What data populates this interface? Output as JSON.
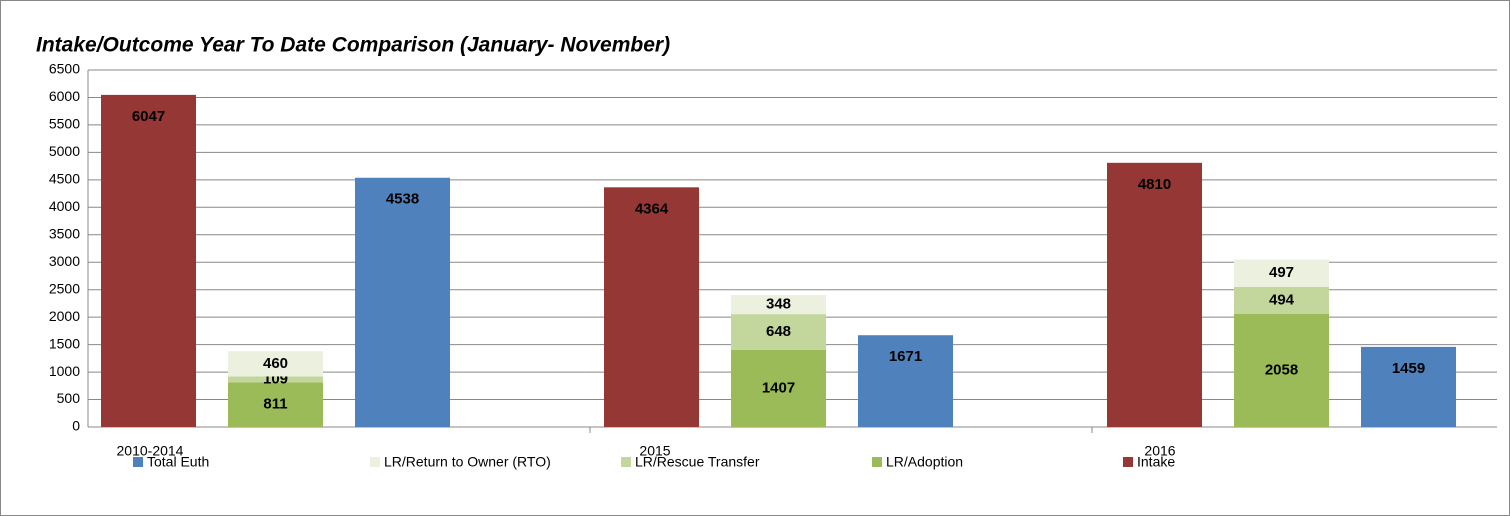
{
  "chart_data": {
    "type": "bar",
    "title": "Intake/Outcome Year To Date Comparison (January- November)",
    "categories": [
      "2010-2014",
      "2015",
      "2016"
    ],
    "series": [
      {
        "name": "Total Euth",
        "color": "#4f81bd",
        "values": [
          4538,
          1671,
          1459
        ]
      },
      {
        "name": "LR/Return to Owner (RTO)",
        "color": "#ebf1de",
        "values": [
          460,
          348,
          497
        ]
      },
      {
        "name": "LR/Rescue Transfer",
        "color": "#c3d69b",
        "values": [
          109,
          648,
          494
        ]
      },
      {
        "name": "LR/Adoption",
        "color": "#9bbb59",
        "values": [
          811,
          1407,
          2058
        ]
      },
      {
        "name": "Intake",
        "color": "#953735",
        "values": [
          6047,
          4364,
          4810
        ]
      }
    ],
    "ylim": [
      0,
      6500
    ],
    "yticks": [
      0,
      500,
      1000,
      1500,
      2000,
      2500,
      3000,
      3500,
      4000,
      4500,
      5000,
      5500,
      6000,
      6500
    ],
    "grid": true,
    "legend": "bottom"
  }
}
